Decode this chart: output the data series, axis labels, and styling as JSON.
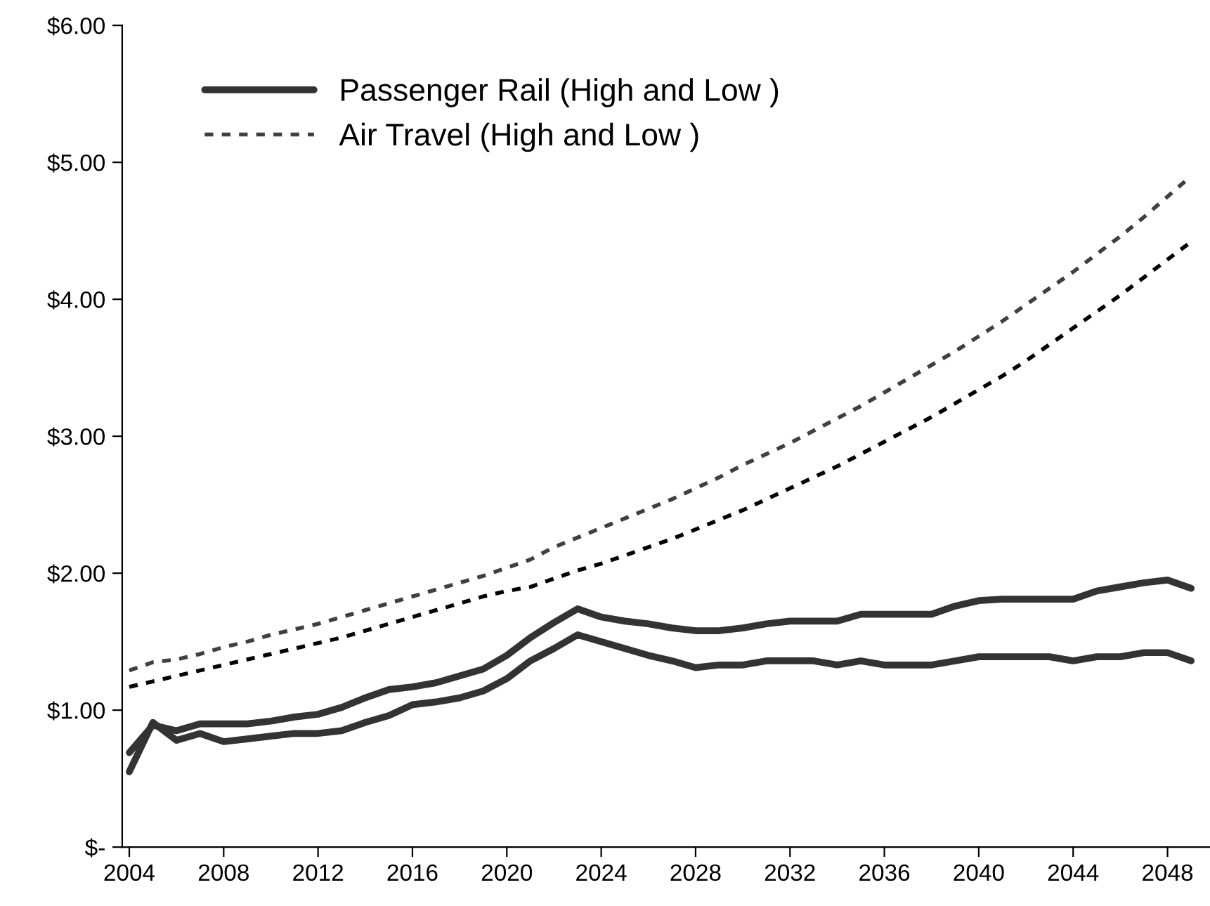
{
  "chart_data": {
    "type": "line",
    "x": [
      2004,
      2005,
      2006,
      2007,
      2008,
      2009,
      2010,
      2011,
      2012,
      2013,
      2014,
      2015,
      2016,
      2017,
      2018,
      2019,
      2020,
      2021,
      2022,
      2023,
      2024,
      2025,
      2026,
      2027,
      2028,
      2029,
      2030,
      2031,
      2032,
      2033,
      2034,
      2035,
      2036,
      2037,
      2038,
      2039,
      2040,
      2041,
      2042,
      2043,
      2044,
      2045,
      2046,
      2047,
      2048,
      2049
    ],
    "series": [
      {
        "name": "Passenger Rail (High and Low )",
        "color": "#333333",
        "line_style": "solid",
        "values": [
          0.69,
          0.89,
          0.85,
          0.9,
          0.9,
          0.9,
          0.92,
          0.95,
          0.97,
          1.02,
          1.09,
          1.15,
          1.17,
          1.2,
          1.25,
          1.3,
          1.4,
          1.53,
          1.64,
          1.74,
          1.68,
          1.65,
          1.63,
          1.6,
          1.58,
          1.58,
          1.6,
          1.63,
          1.65,
          1.65,
          1.65,
          1.7,
          1.7,
          1.7,
          1.7,
          1.76,
          1.8,
          1.81,
          1.81,
          1.81,
          1.81,
          1.87,
          1.9,
          1.93,
          1.95,
          1.89
        ]
      },
      {
        "color": "#333333",
        "line_style": "solid",
        "values": [
          0.55,
          0.91,
          0.78,
          0.83,
          0.77,
          0.79,
          0.81,
          0.83,
          0.83,
          0.85,
          0.91,
          0.96,
          1.04,
          1.06,
          1.09,
          1.14,
          1.23,
          1.36,
          1.45,
          1.55,
          1.5,
          1.45,
          1.4,
          1.36,
          1.31,
          1.33,
          1.33,
          1.36,
          1.36,
          1.36,
          1.33,
          1.36,
          1.33,
          1.33,
          1.33,
          1.36,
          1.39,
          1.39,
          1.39,
          1.39,
          1.36,
          1.39,
          1.39,
          1.42,
          1.42,
          1.36
        ]
      },
      {
        "name": "Air Travel (High and Low )",
        "color": "#404040",
        "line_style": "dashed",
        "values": [
          1.29,
          1.35,
          1.37,
          1.41,
          1.46,
          1.5,
          1.55,
          1.59,
          1.63,
          1.68,
          1.73,
          1.78,
          1.83,
          1.88,
          1.93,
          1.98,
          2.04,
          2.1,
          2.19,
          2.26,
          2.33,
          2.4,
          2.47,
          2.54,
          2.62,
          2.7,
          2.79,
          2.87,
          2.95,
          3.04,
          3.13,
          3.22,
          3.32,
          3.42,
          3.52,
          3.62,
          3.73,
          3.84,
          3.96,
          4.08,
          4.2,
          4.33,
          4.46,
          4.6,
          4.75,
          4.9
        ]
      },
      {
        "color": "#000000",
        "line_style": "dashed",
        "values": [
          1.17,
          1.21,
          1.25,
          1.29,
          1.33,
          1.37,
          1.41,
          1.45,
          1.49,
          1.53,
          1.58,
          1.63,
          1.68,
          1.73,
          1.78,
          1.83,
          1.87,
          1.9,
          1.96,
          2.02,
          2.07,
          2.13,
          2.19,
          2.25,
          2.32,
          2.39,
          2.46,
          2.54,
          2.62,
          2.7,
          2.78,
          2.87,
          2.96,
          3.05,
          3.14,
          3.24,
          3.34,
          3.44,
          3.55,
          3.67,
          3.79,
          3.91,
          4.03,
          4.16,
          4.29,
          4.42
        ]
      }
    ],
    "xlim": [
      2003.7,
      2049.8
    ],
    "xticks": [
      2004,
      2008,
      2012,
      2016,
      2020,
      2024,
      2028,
      2032,
      2036,
      2040,
      2044,
      2048
    ],
    "ylim": [
      0,
      6
    ],
    "yticks": [
      {
        "value": 0,
        "label": "$-"
      },
      {
        "value": 1,
        "label": "$1.00"
      },
      {
        "value": 2,
        "label": "$2.00"
      },
      {
        "value": 3,
        "label": "$3.00"
      },
      {
        "value": 4,
        "label": "$4.00"
      },
      {
        "value": 5,
        "label": "$5.00"
      },
      {
        "value": 6,
        "label": "$6.00"
      }
    ],
    "grid": false,
    "legend": "top left",
    "marker": "none"
  }
}
